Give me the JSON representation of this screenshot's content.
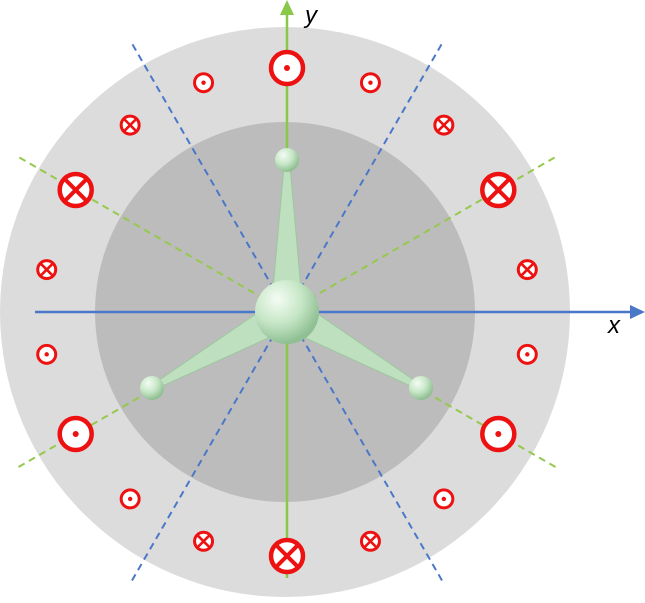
{
  "axes": {
    "x_label": "x",
    "y_label": "y"
  },
  "colors": {
    "outer_ring": "#dcdcdc",
    "inner_disc": "#bcbcbc",
    "axis_blue": "#4a78c8",
    "dashed_blue": "#4a78c8",
    "dashed_green": "#96c84e",
    "arm_green": "#c8e6c8",
    "marker_red": "#ee1111"
  },
  "markers": [
    {
      "symbol": "dot",
      "size": "large"
    },
    {
      "symbol": "dot",
      "size": "small"
    },
    {
      "symbol": "cross",
      "size": "small"
    },
    {
      "symbol": "cross",
      "size": "large"
    },
    {
      "symbol": "cross",
      "size": "small"
    },
    {
      "symbol": "dot",
      "size": "small"
    },
    {
      "symbol": "dot",
      "size": "large"
    },
    {
      "symbol": "dot",
      "size": "small"
    },
    {
      "symbol": "cross",
      "size": "small"
    },
    {
      "symbol": "cross",
      "size": "large"
    },
    {
      "symbol": "cross",
      "size": "small"
    },
    {
      "symbol": "dot",
      "size": "small"
    },
    {
      "symbol": "dot",
      "size": "large"
    },
    {
      "symbol": "dot",
      "size": "small"
    },
    {
      "symbol": "cross",
      "size": "small"
    },
    {
      "symbol": "cross",
      "size": "large"
    },
    {
      "symbol": "cross",
      "size": "small"
    },
    {
      "symbol": "dot",
      "size": "small"
    }
  ]
}
